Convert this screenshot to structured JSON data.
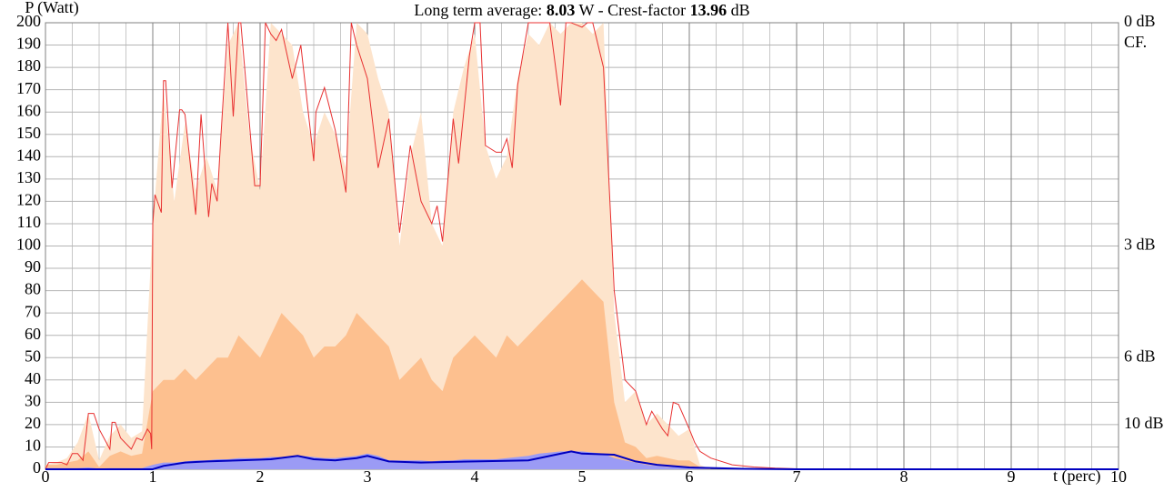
{
  "chart_data": {
    "type": "area",
    "title": [
      "Long term average: ",
      "8.03",
      " W - Crest-factor ",
      "13.96",
      " dB"
    ],
    "y_label": "P (Watt)",
    "x_label": "t (perc)",
    "xlim": [
      0,
      10
    ],
    "ylim": [
      0,
      200
    ],
    "xticks": [
      0,
      1,
      2,
      3,
      4,
      5,
      6,
      7,
      8,
      9,
      10
    ],
    "x_minor_step": 0.25,
    "yticks": [
      0,
      10,
      20,
      30,
      40,
      50,
      60,
      70,
      80,
      90,
      100,
      110,
      120,
      130,
      140,
      150,
      160,
      170,
      180,
      190,
      200
    ],
    "right_axis_label": "CF.",
    "right_ticks": [
      {
        "value": 200,
        "label": "0 dB"
      },
      {
        "value": 100,
        "label": "3 dB"
      },
      {
        "value": 50,
        "label": "6 dB"
      },
      {
        "value": 20,
        "label": "10 dB"
      }
    ],
    "grid": true,
    "x": [
      0,
      0.1,
      0.2,
      0.3,
      0.4,
      0.5,
      0.6,
      0.7,
      0.8,
      0.9,
      1.0,
      1.1,
      1.2,
      1.3,
      1.4,
      1.5,
      1.6,
      1.7,
      1.8,
      1.9,
      2.0,
      2.1,
      2.2,
      2.3,
      2.4,
      2.5,
      2.6,
      2.7,
      2.8,
      2.9,
      3.0,
      3.1,
      3.2,
      3.3,
      3.4,
      3.5,
      3.6,
      3.7,
      3.8,
      3.9,
      4.0,
      4.1,
      4.2,
      4.3,
      4.4,
      4.5,
      4.6,
      4.7,
      4.8,
      4.9,
      5.0,
      5.1,
      5.2,
      5.3,
      5.4,
      5.5,
      5.6,
      5.7,
      5.8,
      5.9,
      6.0,
      6.1,
      6.2
    ],
    "series": [
      {
        "kind": "area",
        "color": "#fde4cc",
        "values": [
          2,
          3,
          5,
          12,
          25,
          4,
          15,
          20,
          14,
          17,
          110,
          170,
          120,
          155,
          125,
          140,
          125,
          190,
          200,
          150,
          125,
          200,
          195,
          190,
          160,
          145,
          160,
          150,
          135,
          200,
          195,
          175,
          160,
          100,
          140,
          160,
          110,
          100,
          160,
          180,
          195,
          145,
          130,
          140,
          175,
          195,
          190,
          200,
          195,
          200,
          200,
          195,
          200,
          70,
          30,
          35,
          20,
          25,
          20,
          15,
          18,
          2,
          0
        ]
      },
      {
        "kind": "area",
        "color": "#fdc08f",
        "values": [
          2,
          2,
          3,
          4,
          8,
          1,
          6,
          8,
          6,
          7,
          35,
          40,
          40,
          45,
          40,
          45,
          50,
          50,
          60,
          55,
          50,
          60,
          70,
          65,
          60,
          50,
          55,
          55,
          60,
          70,
          65,
          60,
          55,
          40,
          45,
          50,
          40,
          35,
          50,
          55,
          60,
          55,
          50,
          60,
          55,
          60,
          65,
          70,
          75,
          80,
          85,
          80,
          75,
          30,
          12,
          10,
          5,
          6,
          5,
          4,
          4,
          1,
          0
        ]
      },
      {
        "kind": "area",
        "color": "#9b9bf5",
        "values": [
          0.5,
          0.5,
          0.5,
          0.5,
          0.8,
          0.3,
          0.5,
          0.5,
          0.5,
          0.5,
          2,
          3,
          3,
          3.5,
          4,
          4,
          4.5,
          4.5,
          5,
          5,
          5,
          5.5,
          5.5,
          6,
          6,
          5.5,
          5,
          5,
          5.5,
          6,
          7,
          6,
          4,
          4,
          4,
          4,
          3.5,
          4,
          4,
          4.5,
          4.5,
          4.5,
          4.5,
          5,
          5.5,
          6,
          7,
          7.5,
          8,
          8,
          8,
          7.5,
          7,
          5,
          4,
          3,
          2,
          1.5,
          1,
          1,
          0.8,
          0.3,
          0
        ]
      },
      {
        "kind": "line",
        "color": "#e83030",
        "width": 1,
        "x": [
          0,
          0.03,
          0.15,
          0.2,
          0.25,
          0.3,
          0.35,
          0.38,
          0.4,
          0.45,
          0.5,
          0.6,
          0.62,
          0.65,
          0.7,
          0.8,
          0.85,
          0.9,
          0.95,
          0.98,
          0.99,
          1.0,
          1.02,
          1.08,
          1.1,
          1.12,
          1.18,
          1.25,
          1.27,
          1.3,
          1.4,
          1.45,
          1.52,
          1.55,
          1.6,
          1.63,
          1.7,
          1.75,
          1.8,
          1.82,
          1.95,
          2.0,
          2.05,
          2.1,
          2.15,
          2.2,
          2.3,
          2.38,
          2.5,
          2.52,
          2.6,
          2.7,
          2.8,
          2.85,
          2.9,
          3.0,
          3.1,
          3.2,
          3.3,
          3.4,
          3.5,
          3.6,
          3.65,
          3.7,
          3.8,
          3.85,
          3.95,
          4.0,
          4.05,
          4.1,
          4.2,
          4.25,
          4.3,
          4.35,
          4.4,
          4.5,
          4.6,
          4.7,
          4.8,
          4.85,
          4.9,
          5.0,
          5.05,
          5.1,
          5.2,
          5.3,
          5.4,
          5.5,
          5.6,
          5.65,
          5.7,
          5.75,
          5.8,
          5.85,
          5.9,
          6.0,
          6.05,
          6.1,
          6.2,
          6.4,
          6.6,
          6.8,
          7.0,
          7.5,
          8,
          10
        ],
        "values": [
          0,
          3,
          3,
          2,
          7,
          7,
          4,
          16,
          25,
          25,
          18,
          9,
          21,
          21,
          14,
          9,
          14,
          13,
          18,
          16,
          9,
          110,
          123,
          115,
          174,
          174,
          126,
          161,
          161,
          159,
          114,
          159,
          113,
          128,
          120,
          145,
          200,
          158,
          200,
          200,
          127,
          127,
          200,
          195,
          192,
          197,
          175,
          190,
          138,
          160,
          171,
          152,
          124,
          200,
          190,
          175,
          135,
          157,
          106,
          145,
          120,
          110,
          118,
          102,
          157,
          137,
          185,
          200,
          200,
          145,
          142,
          142,
          148,
          135,
          172,
          200,
          200,
          200,
          163,
          200,
          200,
          198,
          200,
          200,
          180,
          80,
          40,
          35,
          20,
          26,
          22,
          18,
          15,
          30,
          29,
          18,
          12,
          8,
          5,
          2,
          1,
          0.5,
          0.2,
          0,
          0,
          0
        ]
      },
      {
        "kind": "line",
        "color": "#0000c0",
        "width": 2,
        "x": [
          0,
          0.5,
          0.95,
          1.0,
          1.1,
          1.3,
          1.5,
          1.8,
          2.1,
          2.35,
          2.5,
          2.7,
          2.9,
          3.0,
          3.2,
          3.5,
          4.0,
          4.5,
          4.9,
          5.0,
          5.3,
          5.5,
          5.7,
          6.0,
          6.5,
          7,
          10
        ],
        "values": [
          0,
          0,
          0,
          0,
          1.5,
          3,
          3.5,
          4,
          4.5,
          6,
          4.5,
          4,
          5,
          6,
          3.5,
          3,
          3.5,
          4,
          8,
          7,
          6.5,
          3.5,
          2,
          0.8,
          0.2,
          0,
          0
        ]
      }
    ]
  }
}
